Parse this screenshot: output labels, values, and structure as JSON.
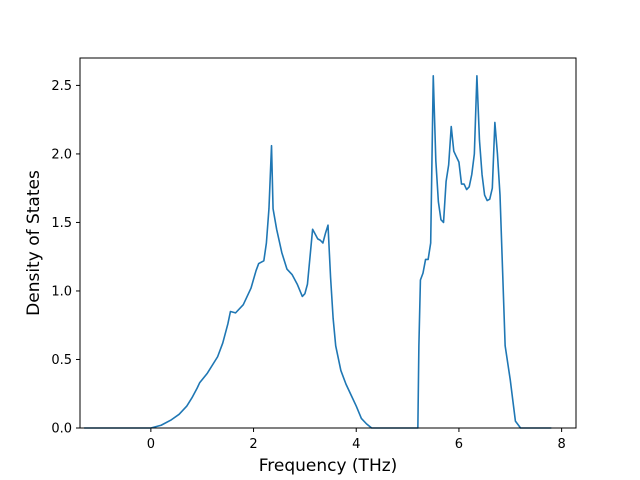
{
  "chart_data": {
    "type": "line",
    "title": "",
    "xlabel": "Frequency (THz)",
    "ylabel": "Density of States",
    "xlim": [
      -1.38,
      8.28
    ],
    "ylim": [
      0,
      2.7
    ],
    "xticks": [
      0,
      2,
      4,
      6,
      8
    ],
    "xtick_labels": [
      "0",
      "2",
      "4",
      "6",
      "8"
    ],
    "yticks": [
      0.0,
      0.5,
      1.0,
      1.5,
      2.0,
      2.5
    ],
    "ytick_labels": [
      "0.0",
      "0.5",
      "1.0",
      "1.5",
      "2.0",
      "2.5"
    ],
    "grid": false,
    "line_color": "#1f77b4",
    "series": [
      {
        "x": [
          -1.3,
          -1.0,
          -0.5,
          0.0,
          0.2,
          0.4,
          0.55,
          0.7,
          0.8,
          0.9,
          0.95,
          1.1,
          1.3,
          1.4,
          1.5,
          1.55,
          1.65,
          1.8,
          1.95,
          2.05,
          2.1,
          2.2,
          2.25,
          2.3,
          2.35,
          2.38,
          2.45,
          2.55,
          2.65,
          2.75,
          2.85,
          2.95,
          3.0,
          3.05,
          3.15,
          3.25,
          3.3,
          3.35,
          3.4,
          3.45,
          3.5,
          3.55,
          3.6,
          3.7,
          3.8,
          3.9,
          4.0,
          4.1,
          4.2,
          4.3,
          4.6,
          5.0,
          5.2,
          5.22,
          5.25,
          5.3,
          5.35,
          5.4,
          5.45,
          5.5,
          5.55,
          5.6,
          5.65,
          5.7,
          5.75,
          5.8,
          5.85,
          5.9,
          5.95,
          6.0,
          6.05,
          6.1,
          6.15,
          6.2,
          6.25,
          6.3,
          6.35,
          6.4,
          6.45,
          6.5,
          6.55,
          6.6,
          6.65,
          6.7,
          6.75,
          6.8,
          6.85,
          6.9,
          7.0,
          7.05,
          7.1,
          7.2,
          7.5,
          7.8
        ],
        "y": [
          0.0,
          0.0,
          0.0,
          0.0,
          0.02,
          0.06,
          0.1,
          0.16,
          0.22,
          0.29,
          0.33,
          0.4,
          0.52,
          0.62,
          0.76,
          0.85,
          0.84,
          0.9,
          1.02,
          1.15,
          1.2,
          1.22,
          1.35,
          1.6,
          2.06,
          1.6,
          1.45,
          1.28,
          1.16,
          1.12,
          1.05,
          0.96,
          0.98,
          1.05,
          1.45,
          1.38,
          1.37,
          1.35,
          1.42,
          1.48,
          1.1,
          0.8,
          0.6,
          0.42,
          0.32,
          0.24,
          0.16,
          0.07,
          0.03,
          0.0,
          0.0,
          0.0,
          0.0,
          0.6,
          1.08,
          1.13,
          1.23,
          1.23,
          1.35,
          2.57,
          1.95,
          1.65,
          1.52,
          1.5,
          1.8,
          1.92,
          2.2,
          2.02,
          1.98,
          1.94,
          1.78,
          1.78,
          1.74,
          1.76,
          1.85,
          2.0,
          2.57,
          2.1,
          1.85,
          1.7,
          1.66,
          1.67,
          1.75,
          2.23,
          2.0,
          1.7,
          1.15,
          0.6,
          0.35,
          0.2,
          0.05,
          0.0,
          0.0,
          0.0
        ]
      }
    ]
  }
}
